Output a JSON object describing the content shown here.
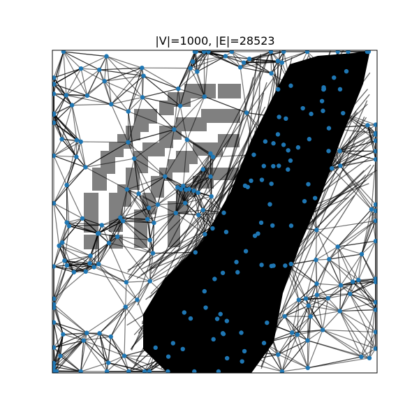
{
  "chart_data": {
    "type": "scatter",
    "title": "|V|=1000, |E|=28523",
    "xlabel": "",
    "ylabel": "",
    "axes_ticks": false,
    "grid": false,
    "legend": "none",
    "stats": {
      "vertices": 1000,
      "edges": 28523
    },
    "colors": {
      "node": "#1f77b4",
      "edge": "#000000",
      "obstacle": "#808080",
      "background": "#ffffff"
    },
    "description_elements": [
      "graph-edges",
      "graph-nodes",
      "grey-maze-obstacle"
    ]
  }
}
